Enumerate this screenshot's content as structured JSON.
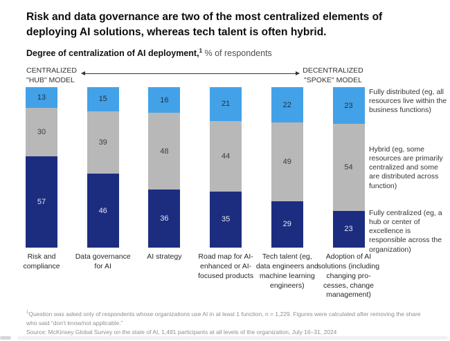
{
  "title": "Risk and data governance are two of the most centralized elements of deploying AI solutions, whereas tech talent is often hybrid.",
  "subtitle": {
    "bold": "Degree of centralization of AI deployment,",
    "sup": "1",
    "rest": " % of respondents"
  },
  "axis": {
    "left_line1": "CENTRALIZED",
    "left_line2": "\"HUB\" MODEL",
    "right_line1": "DECENTRALIZED",
    "right_line2": "\"SPOKE\" MODEL"
  },
  "colors": {
    "distributed": "#43a1e8",
    "hybrid": "#b8b8b8",
    "centralized": "#1c2d80"
  },
  "chart_data": {
    "type": "bar",
    "stacked": true,
    "orientation": "vertical",
    "grid": false,
    "legend_position": "right",
    "ylim": [
      0,
      100
    ],
    "unit": "% of respondents",
    "categories": [
      "Risk and compliance",
      "Data governance for AI",
      "AI strategy",
      "Road map for AI-enhanced or AI-focused products",
      "Tech talent (eg, data engineers and machine learning engineers)",
      "Adoption of AI solutions (including changing pro­cesses, change management)"
    ],
    "series": [
      {
        "name": "Fully distributed (eg, all resources live within the business functions)",
        "color_key": "distributed",
        "values": [
          13,
          15,
          16,
          21,
          22,
          23
        ]
      },
      {
        "name": "Hybrid (eg, some resources are primarily centralized and some are distributed across function)",
        "color_key": "hybrid",
        "values": [
          30,
          39,
          48,
          44,
          49,
          54
        ]
      },
      {
        "name": "Fully centralized (eg, a hub or center of excellence is responsible across the organization)",
        "color_key": "centralized",
        "values": [
          57,
          46,
          36,
          35,
          29,
          23
        ]
      }
    ]
  },
  "footnotes": {
    "note_sup": "1",
    "note": "Question was asked only of respondents whose organizations use AI in at least 1 function, n = 1,229. Figures were calculated after removing the share who said “don’t know/not applicable.”",
    "source": "Source: McKinsey Global Survey on the state of AI, 1,491 participants at all levels of the organization, July 16–31, 2024"
  }
}
